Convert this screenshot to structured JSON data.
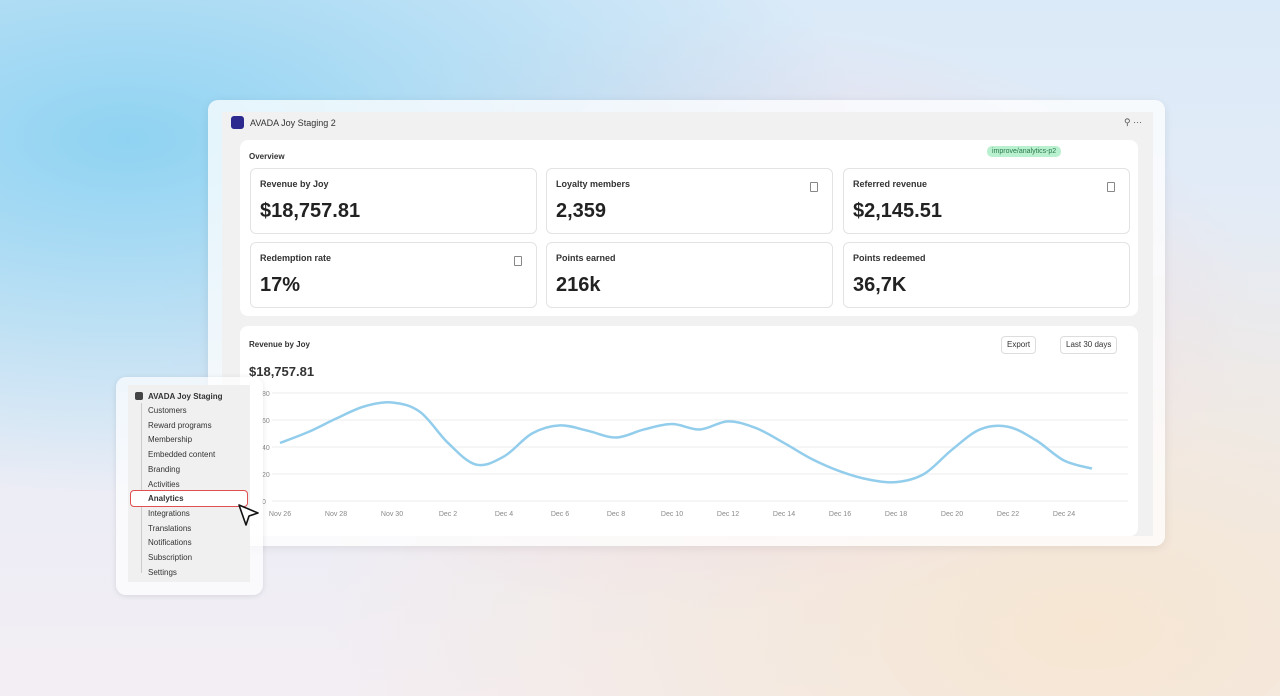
{
  "app": {
    "title": "AVADA Joy Staging 2"
  },
  "overview": {
    "title": "Overview",
    "badge": "improve/analytics-p2",
    "cards": [
      {
        "label": "Revenue by Joy",
        "value": "$18,757.81"
      },
      {
        "label": "Loyalty members",
        "value": "2,359"
      },
      {
        "label": "Referred revenue",
        "value": "$2,145.51"
      },
      {
        "label": "Redemption rate",
        "value": "17%"
      },
      {
        "label": "Points earned",
        "value": "216k"
      },
      {
        "label": "Points redeemed",
        "value": "36,7K"
      }
    ]
  },
  "chart_panel": {
    "title": "Revenue by Joy",
    "total": "$18,757.81",
    "export": "Export",
    "range": "Last 30 days"
  },
  "chart_data": {
    "type": "line",
    "color": "#93cdec",
    "categories": [
      "Nov 26",
      null,
      "Nov 28",
      null,
      "Nov 30",
      null,
      "Dec 2",
      null,
      "Dec 4",
      null,
      "Dec 6",
      null,
      "Dec 8",
      null,
      "Dec 10",
      null,
      "Dec 12",
      null,
      "Dec 14",
      null,
      "Dec 16",
      null,
      "Dec 18",
      null,
      "Dec 20",
      null,
      "Dec 22",
      null,
      "Dec 24",
      null
    ],
    "values": [
      43,
      51,
      61,
      70,
      73,
      66,
      43,
      27,
      33,
      50,
      56,
      52,
      47,
      53,
      57,
      53,
      59,
      54,
      43,
      31,
      22,
      16,
      14,
      20,
      38,
      53,
      55,
      45,
      30,
      24
    ],
    "ylim": [
      0,
      80
    ],
    "yticks": [
      0,
      20,
      40,
      60,
      80
    ],
    "grid": true
  },
  "sidebar": {
    "title": "AVADA Joy Staging",
    "items": [
      "Customers",
      "Reward programs",
      "Membership",
      "Embedded content",
      "Branding",
      "Activities",
      "Analytics",
      "Integrations",
      "Translations",
      "Notifications",
      "Subscription",
      "Settings"
    ]
  }
}
